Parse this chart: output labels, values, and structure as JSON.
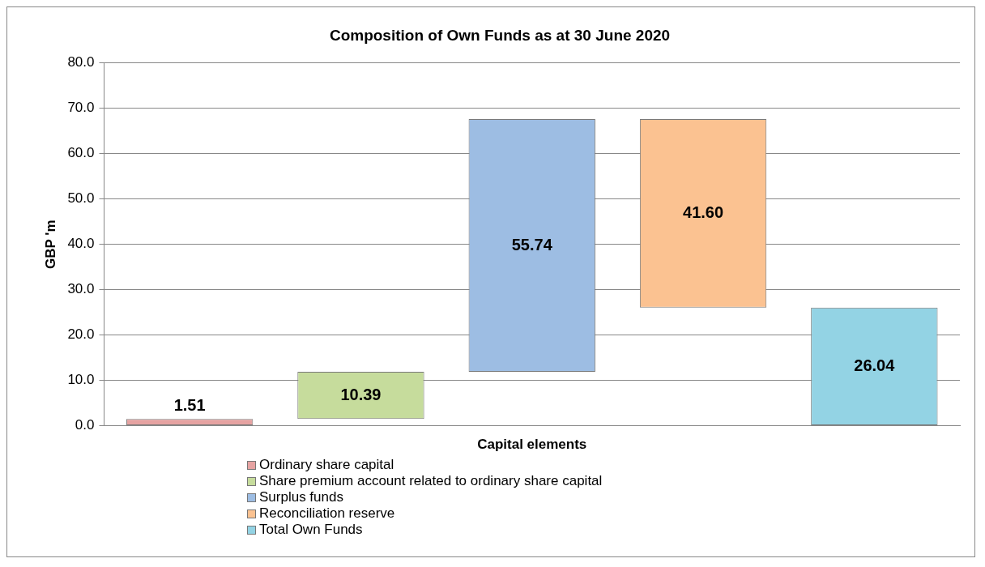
{
  "chart_data": {
    "type": "bar",
    "title": "Composition of Own Funds as at 30 June 2020",
    "xlabel": "Capital elements",
    "ylabel": "GBP 'm",
    "categories": [
      null,
      null,
      null,
      null,
      null
    ],
    "series": [
      {
        "name": "Ordinary share capital",
        "color": "#e6a3a2",
        "values": [
          1.51,
          null,
          null,
          null,
          null
        ],
        "base": [
          0,
          null,
          null,
          null,
          null
        ],
        "value_labels": [
          "1.51",
          null,
          null,
          null,
          null
        ]
      },
      {
        "name": "Share premium account related to ordinary share capital",
        "color": "#c6dc9c",
        "values": [
          null,
          10.39,
          null,
          null,
          null
        ],
        "base": [
          null,
          1.51,
          null,
          null,
          null
        ],
        "value_labels": [
          null,
          "10.39",
          null,
          null,
          null
        ]
      },
      {
        "name": "Surplus funds",
        "color": "#9dbde3",
        "values": [
          null,
          null,
          55.74,
          null,
          null
        ],
        "base": [
          null,
          null,
          11.9,
          null,
          null
        ],
        "value_labels": [
          null,
          null,
          "55.74",
          null,
          null
        ]
      },
      {
        "name": "Reconciliation reserve",
        "color": "#fbc291",
        "values": [
          null,
          null,
          null,
          41.6,
          null
        ],
        "base": [
          null,
          null,
          null,
          26.04,
          null
        ],
        "value_labels": [
          null,
          null,
          null,
          "41.60",
          null
        ]
      },
      {
        "name": "Total Own Funds",
        "color": "#93d3e4",
        "values": [
          null,
          null,
          null,
          null,
          26.04
        ],
        "base": [
          null,
          null,
          null,
          null,
          0
        ],
        "value_labels": [
          null,
          null,
          null,
          null,
          "26.04"
        ]
      }
    ],
    "ylim": [
      0,
      80
    ],
    "yticks": [
      {
        "value": 0,
        "label": "0.0"
      },
      {
        "value": 10,
        "label": "10.0"
      },
      {
        "value": 20,
        "label": "20.0"
      },
      {
        "value": 30,
        "label": "30.0"
      },
      {
        "value": 40,
        "label": "40.0"
      },
      {
        "value": 50,
        "label": "50.0"
      },
      {
        "value": 60,
        "label": "60.0"
      },
      {
        "value": 70,
        "label": "70.0"
      },
      {
        "value": 80,
        "label": "80.0"
      }
    ],
    "grid": "y",
    "legend": "bottom"
  }
}
